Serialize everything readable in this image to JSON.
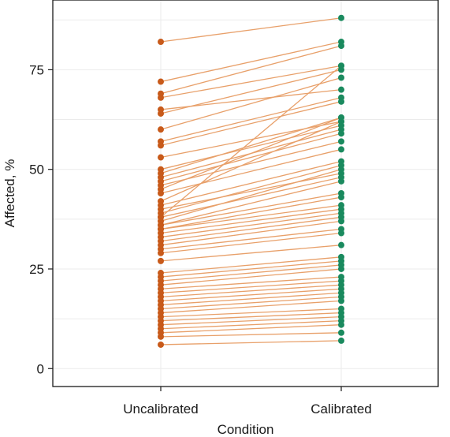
{
  "chart_data": {
    "type": "line",
    "title": "",
    "xlabel": "Condition",
    "ylabel": "Affected, %",
    "categories": [
      "Uncalibrated",
      "Calibrated"
    ],
    "ylim": [
      -4.5,
      92.5
    ],
    "yticks": [
      0,
      25,
      50,
      75
    ],
    "grid": true,
    "legend": "none",
    "colors": {
      "uncalibrated_point": "#c85a1a",
      "calibrated_point": "#1a8a5e",
      "line": "#e8a06a",
      "grid": "#ebebeb",
      "axis": "#1a1a1a"
    },
    "pairs": [
      [
        82,
        88
      ],
      [
        72,
        82
      ],
      [
        69,
        81
      ],
      [
        68,
        76
      ],
      [
        65,
        70
      ],
      [
        64,
        75
      ],
      [
        60,
        73
      ],
      [
        57,
        68
      ],
      [
        56,
        67
      ],
      [
        53,
        62
      ],
      [
        50,
        61
      ],
      [
        49,
        63
      ],
      [
        48,
        60
      ],
      [
        47,
        59
      ],
      [
        46,
        57
      ],
      [
        45,
        63
      ],
      [
        44,
        55
      ],
      [
        42,
        62
      ],
      [
        41,
        52
      ],
      [
        40,
        49
      ],
      [
        39,
        51
      ],
      [
        38,
        76
      ],
      [
        38,
        48
      ],
      [
        37,
        50
      ],
      [
        36,
        47
      ],
      [
        36,
        44
      ],
      [
        35,
        43
      ],
      [
        35,
        41
      ],
      [
        34,
        40
      ],
      [
        33,
        39
      ],
      [
        32,
        38
      ],
      [
        31,
        37
      ],
      [
        30,
        35
      ],
      [
        29,
        34
      ],
      [
        27,
        31
      ],
      [
        24,
        28
      ],
      [
        23,
        27
      ],
      [
        22,
        26
      ],
      [
        21,
        25
      ],
      [
        20,
        23
      ],
      [
        19,
        22
      ],
      [
        18,
        21
      ],
      [
        17,
        20
      ],
      [
        16,
        19
      ],
      [
        15,
        18
      ],
      [
        14,
        17
      ],
      [
        13,
        15
      ],
      [
        12,
        14
      ],
      [
        11,
        13
      ],
      [
        10,
        12
      ],
      [
        9,
        11
      ],
      [
        8,
        9
      ],
      [
        6,
        7
      ]
    ]
  }
}
